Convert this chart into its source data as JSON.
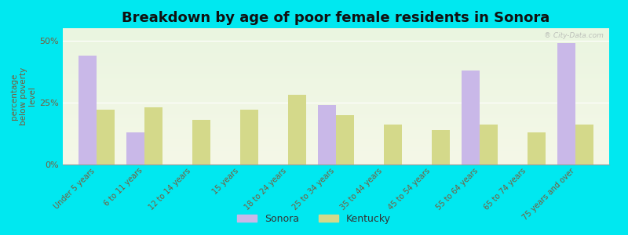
{
  "title": "Breakdown by age of poor female residents in Sonora",
  "categories": [
    "Under 5 years",
    "6 to 11 years",
    "12 to 14 years",
    "15 years",
    "18 to 24 years",
    "25 to 34 years",
    "35 to 44 years",
    "45 to 54 years",
    "55 to 64 years",
    "65 to 74 years",
    "75 years and over"
  ],
  "sonora_values": [
    44,
    13,
    0,
    0,
    0,
    24,
    0,
    0,
    38,
    0,
    49
  ],
  "kentucky_values": [
    22,
    23,
    18,
    22,
    28,
    20,
    16,
    14,
    16,
    13,
    16
  ],
  "sonora_color": "#c9b8e8",
  "kentucky_color": "#d4d98a",
  "background_color": "#00e8f0",
  "plot_bg_color_top": "#eaf5e0",
  "plot_bg_color_bottom": "#f5f8e8",
  "ylabel": "percentage\nbelow poverty\nlevel",
  "ylim": [
    0,
    55
  ],
  "yticks": [
    0,
    25,
    50
  ],
  "ytick_labels": [
    "0%",
    "25%",
    "50%"
  ],
  "title_fontsize": 13,
  "axis_label_fontsize": 7.5,
  "tick_label_fontsize": 7,
  "bar_width": 0.38,
  "legend_labels": [
    "Sonora",
    "Kentucky"
  ],
  "watermark": "® City-Data.com"
}
